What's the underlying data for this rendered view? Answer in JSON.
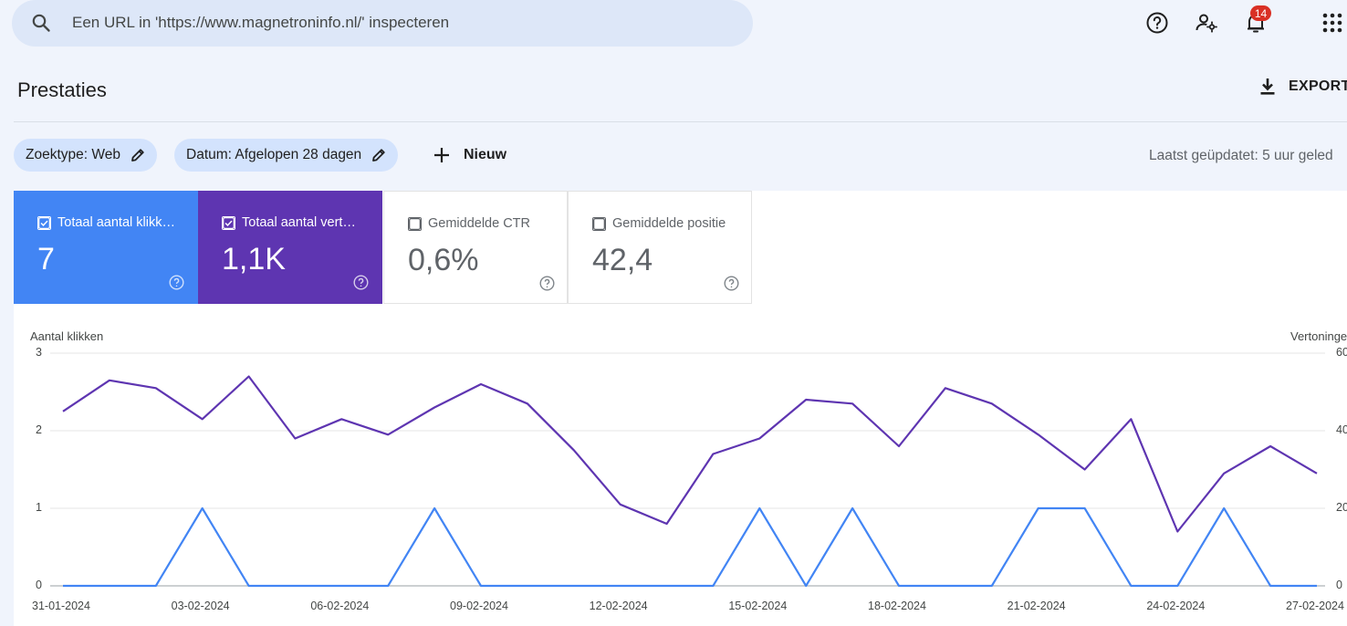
{
  "search": {
    "placeholder": "Een URL in 'https://www.magnetroninfo.nl/' inspecteren"
  },
  "topbar": {
    "notifications_count": "14",
    "icons": [
      "help-icon",
      "manage-users-icon",
      "notifications-icon",
      "apps-grid-icon"
    ]
  },
  "header": {
    "title": "Prestaties",
    "export_label": "EXPORT"
  },
  "filters": {
    "search_type": "Zoektype: Web",
    "date": "Datum: Afgelopen 28 dagen",
    "new_label": "Nieuw",
    "last_updated": "Laatst geüpdatet: 5 uur geled"
  },
  "metrics": [
    {
      "label": "Totaal aantal klikk…",
      "value": "7",
      "checked": true,
      "color": "#4285f4"
    },
    {
      "label": "Totaal aantal vert…",
      "value": "1,1K",
      "checked": true,
      "color": "#5e35b1"
    },
    {
      "label": "Gemiddelde CTR",
      "value": "0,6%",
      "checked": false,
      "color": "#ffffff"
    },
    {
      "label": "Gemiddelde positie",
      "value": "42,4",
      "checked": false,
      "color": "#ffffff"
    }
  ],
  "chart_data": {
    "type": "line",
    "ylabel_left": "Aantal klikken",
    "ylabel_right": "Vertoninge",
    "ylim_left": [
      0,
      3
    ],
    "ylim_right": [
      0,
      60
    ],
    "yticks_left": [
      "0",
      "1",
      "2",
      "3"
    ],
    "yticks_right": [
      "0",
      "20",
      "40",
      "60"
    ],
    "x": [
      "31-01-2024",
      "01-02-2024",
      "02-02-2024",
      "03-02-2024",
      "04-02-2024",
      "05-02-2024",
      "06-02-2024",
      "07-02-2024",
      "08-02-2024",
      "09-02-2024",
      "10-02-2024",
      "11-02-2024",
      "12-02-2024",
      "13-02-2024",
      "14-02-2024",
      "15-02-2024",
      "16-02-2024",
      "17-02-2024",
      "18-02-2024",
      "19-02-2024",
      "20-02-2024",
      "21-02-2024",
      "22-02-2024",
      "23-02-2024",
      "24-02-2024",
      "25-02-2024",
      "26-02-2024",
      "27-02-2024"
    ],
    "xtick_labels": [
      "31-01-2024",
      "03-02-2024",
      "06-02-2024",
      "09-02-2024",
      "12-02-2024",
      "15-02-2024",
      "18-02-2024",
      "21-02-2024",
      "24-02-2024",
      "27-02-2024"
    ],
    "xtick_every": 3,
    "grid": true,
    "series": [
      {
        "name": "Totaal aantal klikken",
        "axis": "left",
        "color": "#4285f4",
        "values": [
          0,
          0,
          0,
          1,
          0,
          0,
          0,
          0,
          1,
          0,
          0,
          0,
          0,
          0,
          0,
          1,
          0,
          1,
          0,
          0,
          0,
          1,
          1,
          0,
          0,
          1,
          0,
          0
        ]
      },
      {
        "name": "Totaal aantal vertoningen",
        "axis": "right",
        "color": "#5e35b1",
        "values": [
          45,
          53,
          51,
          43,
          54,
          38,
          43,
          39,
          46,
          52,
          47,
          35,
          21,
          16,
          34,
          38,
          48,
          47,
          36,
          51,
          47,
          39,
          30,
          43,
          14,
          29,
          36,
          29
        ]
      }
    ]
  }
}
